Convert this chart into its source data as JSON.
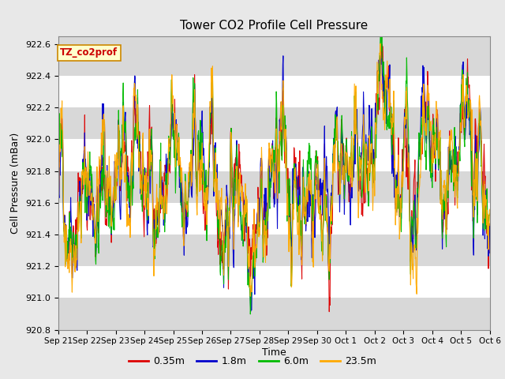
{
  "title": "Tower CO2 Profile Cell Pressure",
  "xlabel": "Time",
  "ylabel": "Cell Pressure (mBar)",
  "ylim": [
    920.8,
    922.65
  ],
  "yticks": [
    920.8,
    921.0,
    921.2,
    921.4,
    921.6,
    921.8,
    922.0,
    922.2,
    922.4,
    922.6
  ],
  "series_labels": [
    "0.35m",
    "1.8m",
    "6.0m",
    "23.5m"
  ],
  "series_colors": [
    "#dd0000",
    "#0000cc",
    "#00bb00",
    "#ffaa00"
  ],
  "line_width": 0.8,
  "background_color": "#e0e0e0",
  "plot_bg_color": "#d8d8d8",
  "white_band_color": "#f0f0f0",
  "annotation_text": "TZ_co2prof",
  "annotation_bg": "#ffffcc",
  "annotation_border": "#cc8800",
  "annotation_text_color": "#cc0000",
  "n_points": 1200,
  "x_start": 0,
  "x_end": 15,
  "xtick_labels": [
    "Sep 21",
    "Sep 22",
    "Sep 23",
    "Sep 24",
    "Sep 25",
    "Sep 26",
    "Sep 27",
    "Sep 28",
    "Sep 29",
    "Sep 30",
    "Oct 1",
    "Oct 2",
    "Oct 3",
    "Oct 4",
    "Oct 5",
    "Oct 6"
  ],
  "xtick_positions": [
    0,
    1,
    2,
    3,
    4,
    5,
    6,
    7,
    8,
    9,
    10,
    11,
    12,
    13,
    14,
    15
  ],
  "seed": 42,
  "base_pressure": 921.7,
  "noise_scale": 0.12,
  "mean_reversion": 0.08
}
